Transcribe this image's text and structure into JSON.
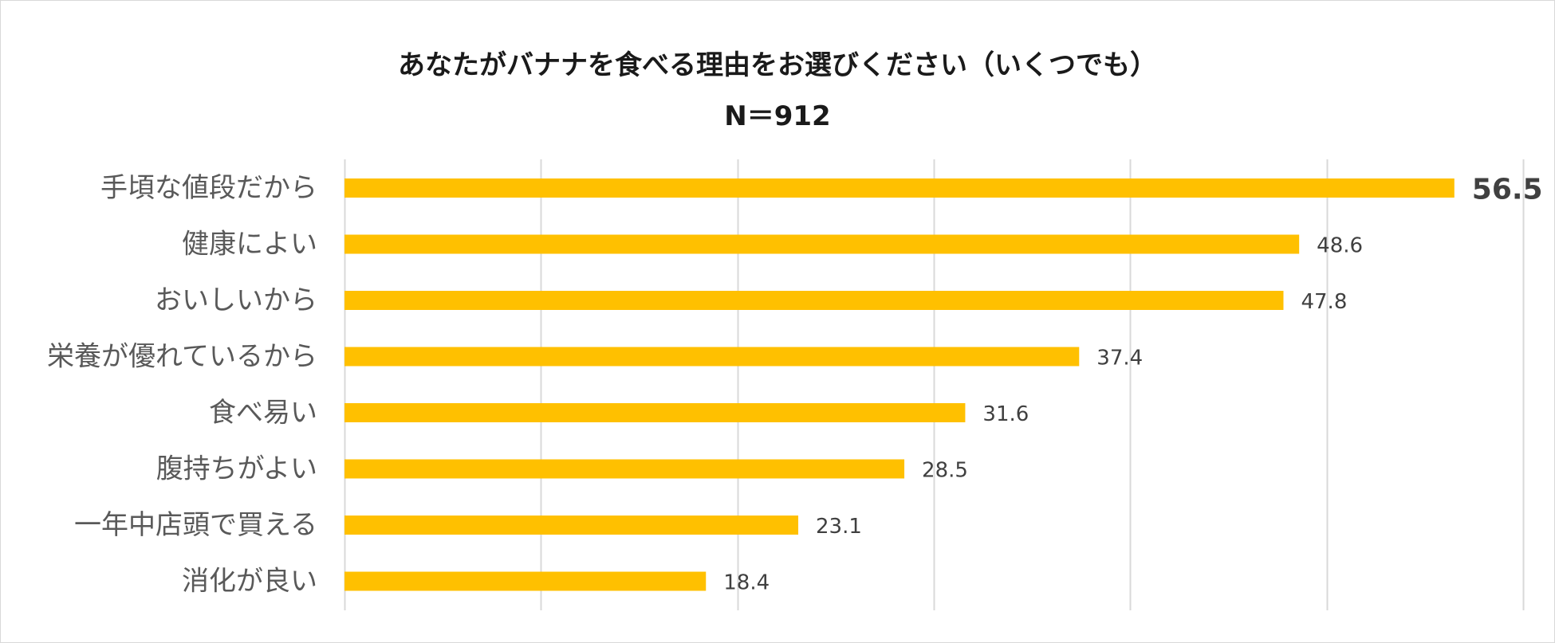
{
  "chart_data": {
    "type": "bar",
    "orientation": "horizontal",
    "title": "あなたがバナナを食べる理由をお選びください（いくつでも）",
    "subtitle": "N＝912",
    "categories": [
      "手頃な値段だから",
      "健康によい",
      "おいしいから",
      "栄養が優れているから",
      "食べ易い",
      "腹持ちがよい",
      "一年中店頭で買える",
      "消化が良い"
    ],
    "values": [
      56.5,
      48.6,
      47.8,
      37.4,
      31.6,
      28.5,
      23.1,
      18.4
    ],
    "value_labels": [
      "56.5",
      "48.6",
      "47.8",
      "37.4",
      "31.6",
      "28.5",
      "23.1",
      "18.4"
    ],
    "emphasized_index": 0,
    "xlim": [
      0,
      60
    ],
    "x_gridline_step": 10,
    "grid": true,
    "x_tick_labels_shown": false,
    "legend": "none",
    "bar_color": "#FFC000",
    "gridline_color": "#d9d9d9"
  }
}
